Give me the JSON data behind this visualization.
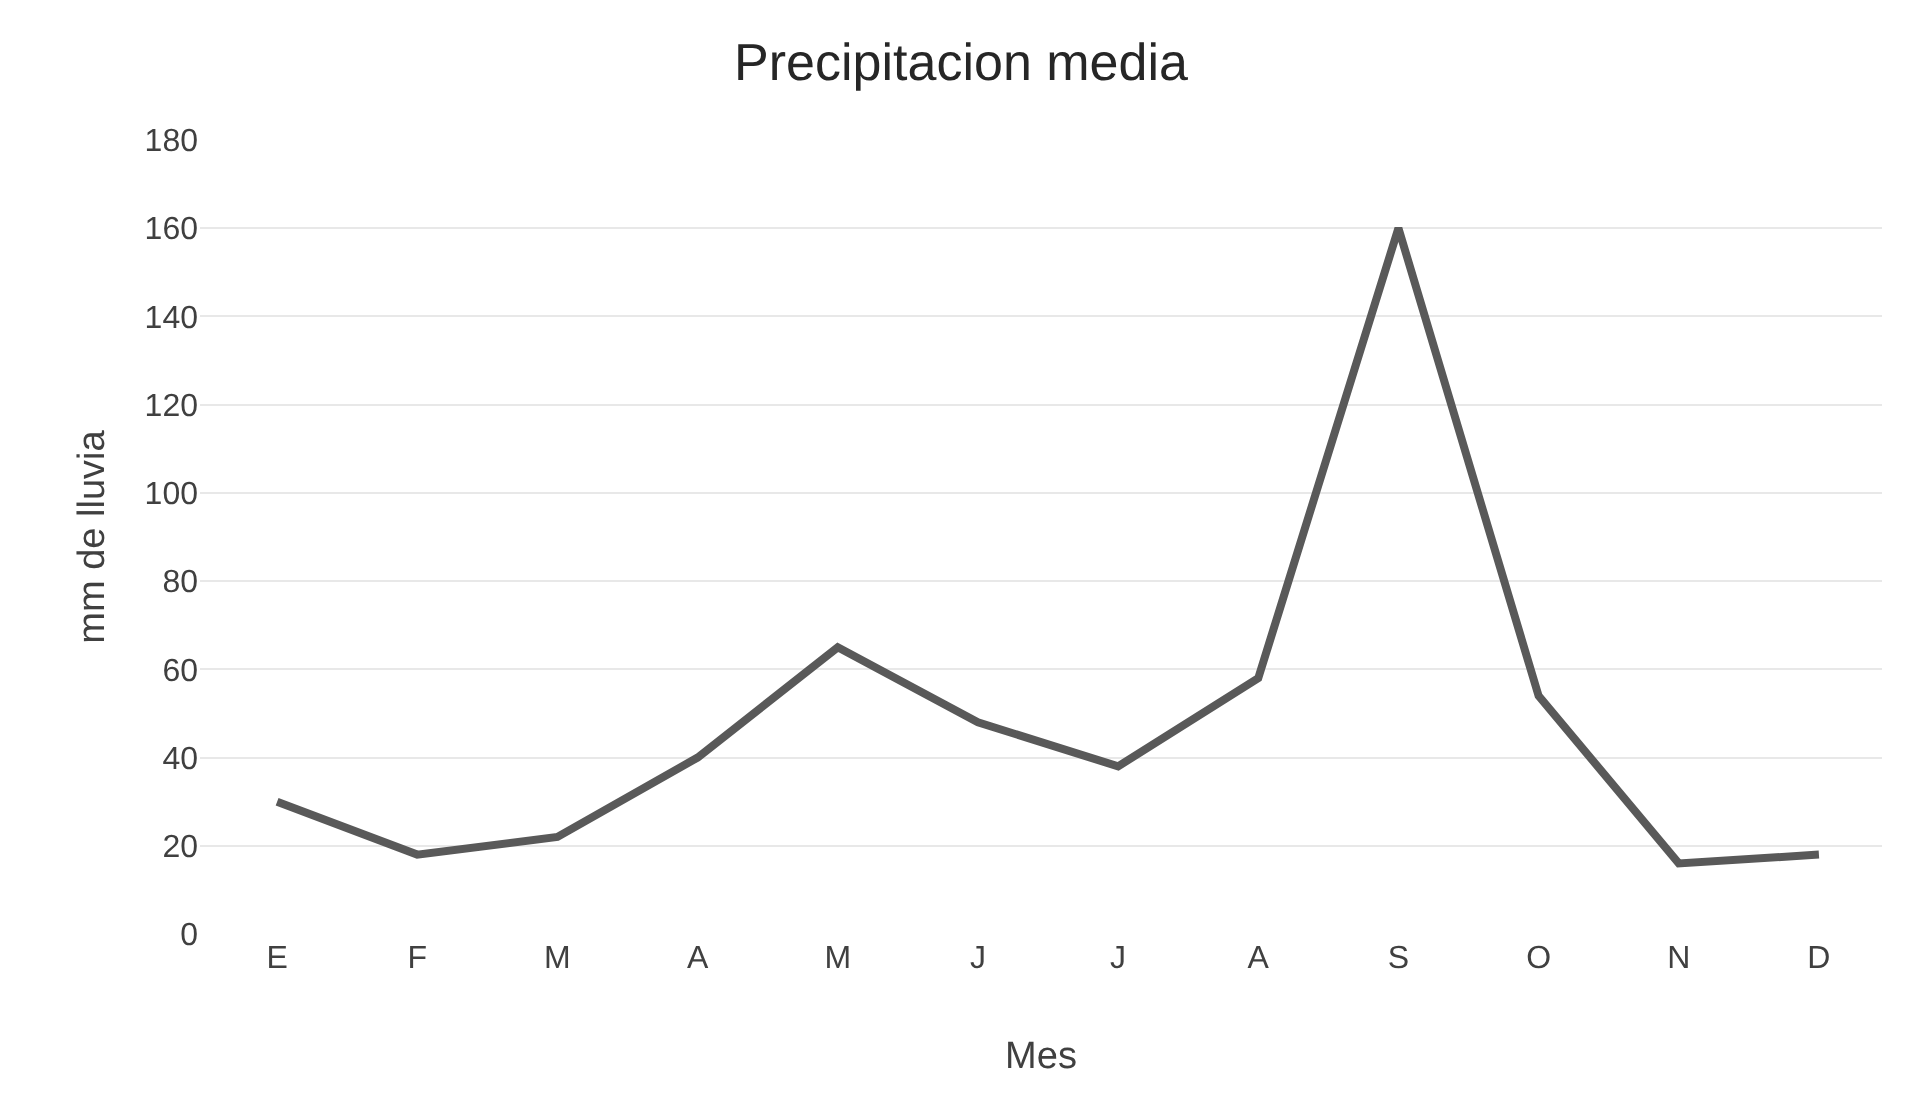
{
  "chart_data": {
    "type": "line",
    "title": "Precipitacion media",
    "xlabel": "Mes",
    "ylabel": "mm de lluvia",
    "categories": [
      "E",
      "F",
      "M",
      "A",
      "M",
      "J",
      "J",
      "A",
      "S",
      "O",
      "N",
      "D"
    ],
    "series": [
      {
        "color": "#595959",
        "values": [
          30,
          18,
          22,
          40,
          65,
          48,
          38,
          58,
          160,
          54,
          16,
          18
        ]
      }
    ],
    "ylim": [
      0,
      180
    ],
    "yticks": [
      0,
      20,
      40,
      60,
      80,
      100,
      120,
      140,
      160,
      180
    ],
    "grid": "y",
    "marker": "none",
    "line_style": "solid"
  }
}
